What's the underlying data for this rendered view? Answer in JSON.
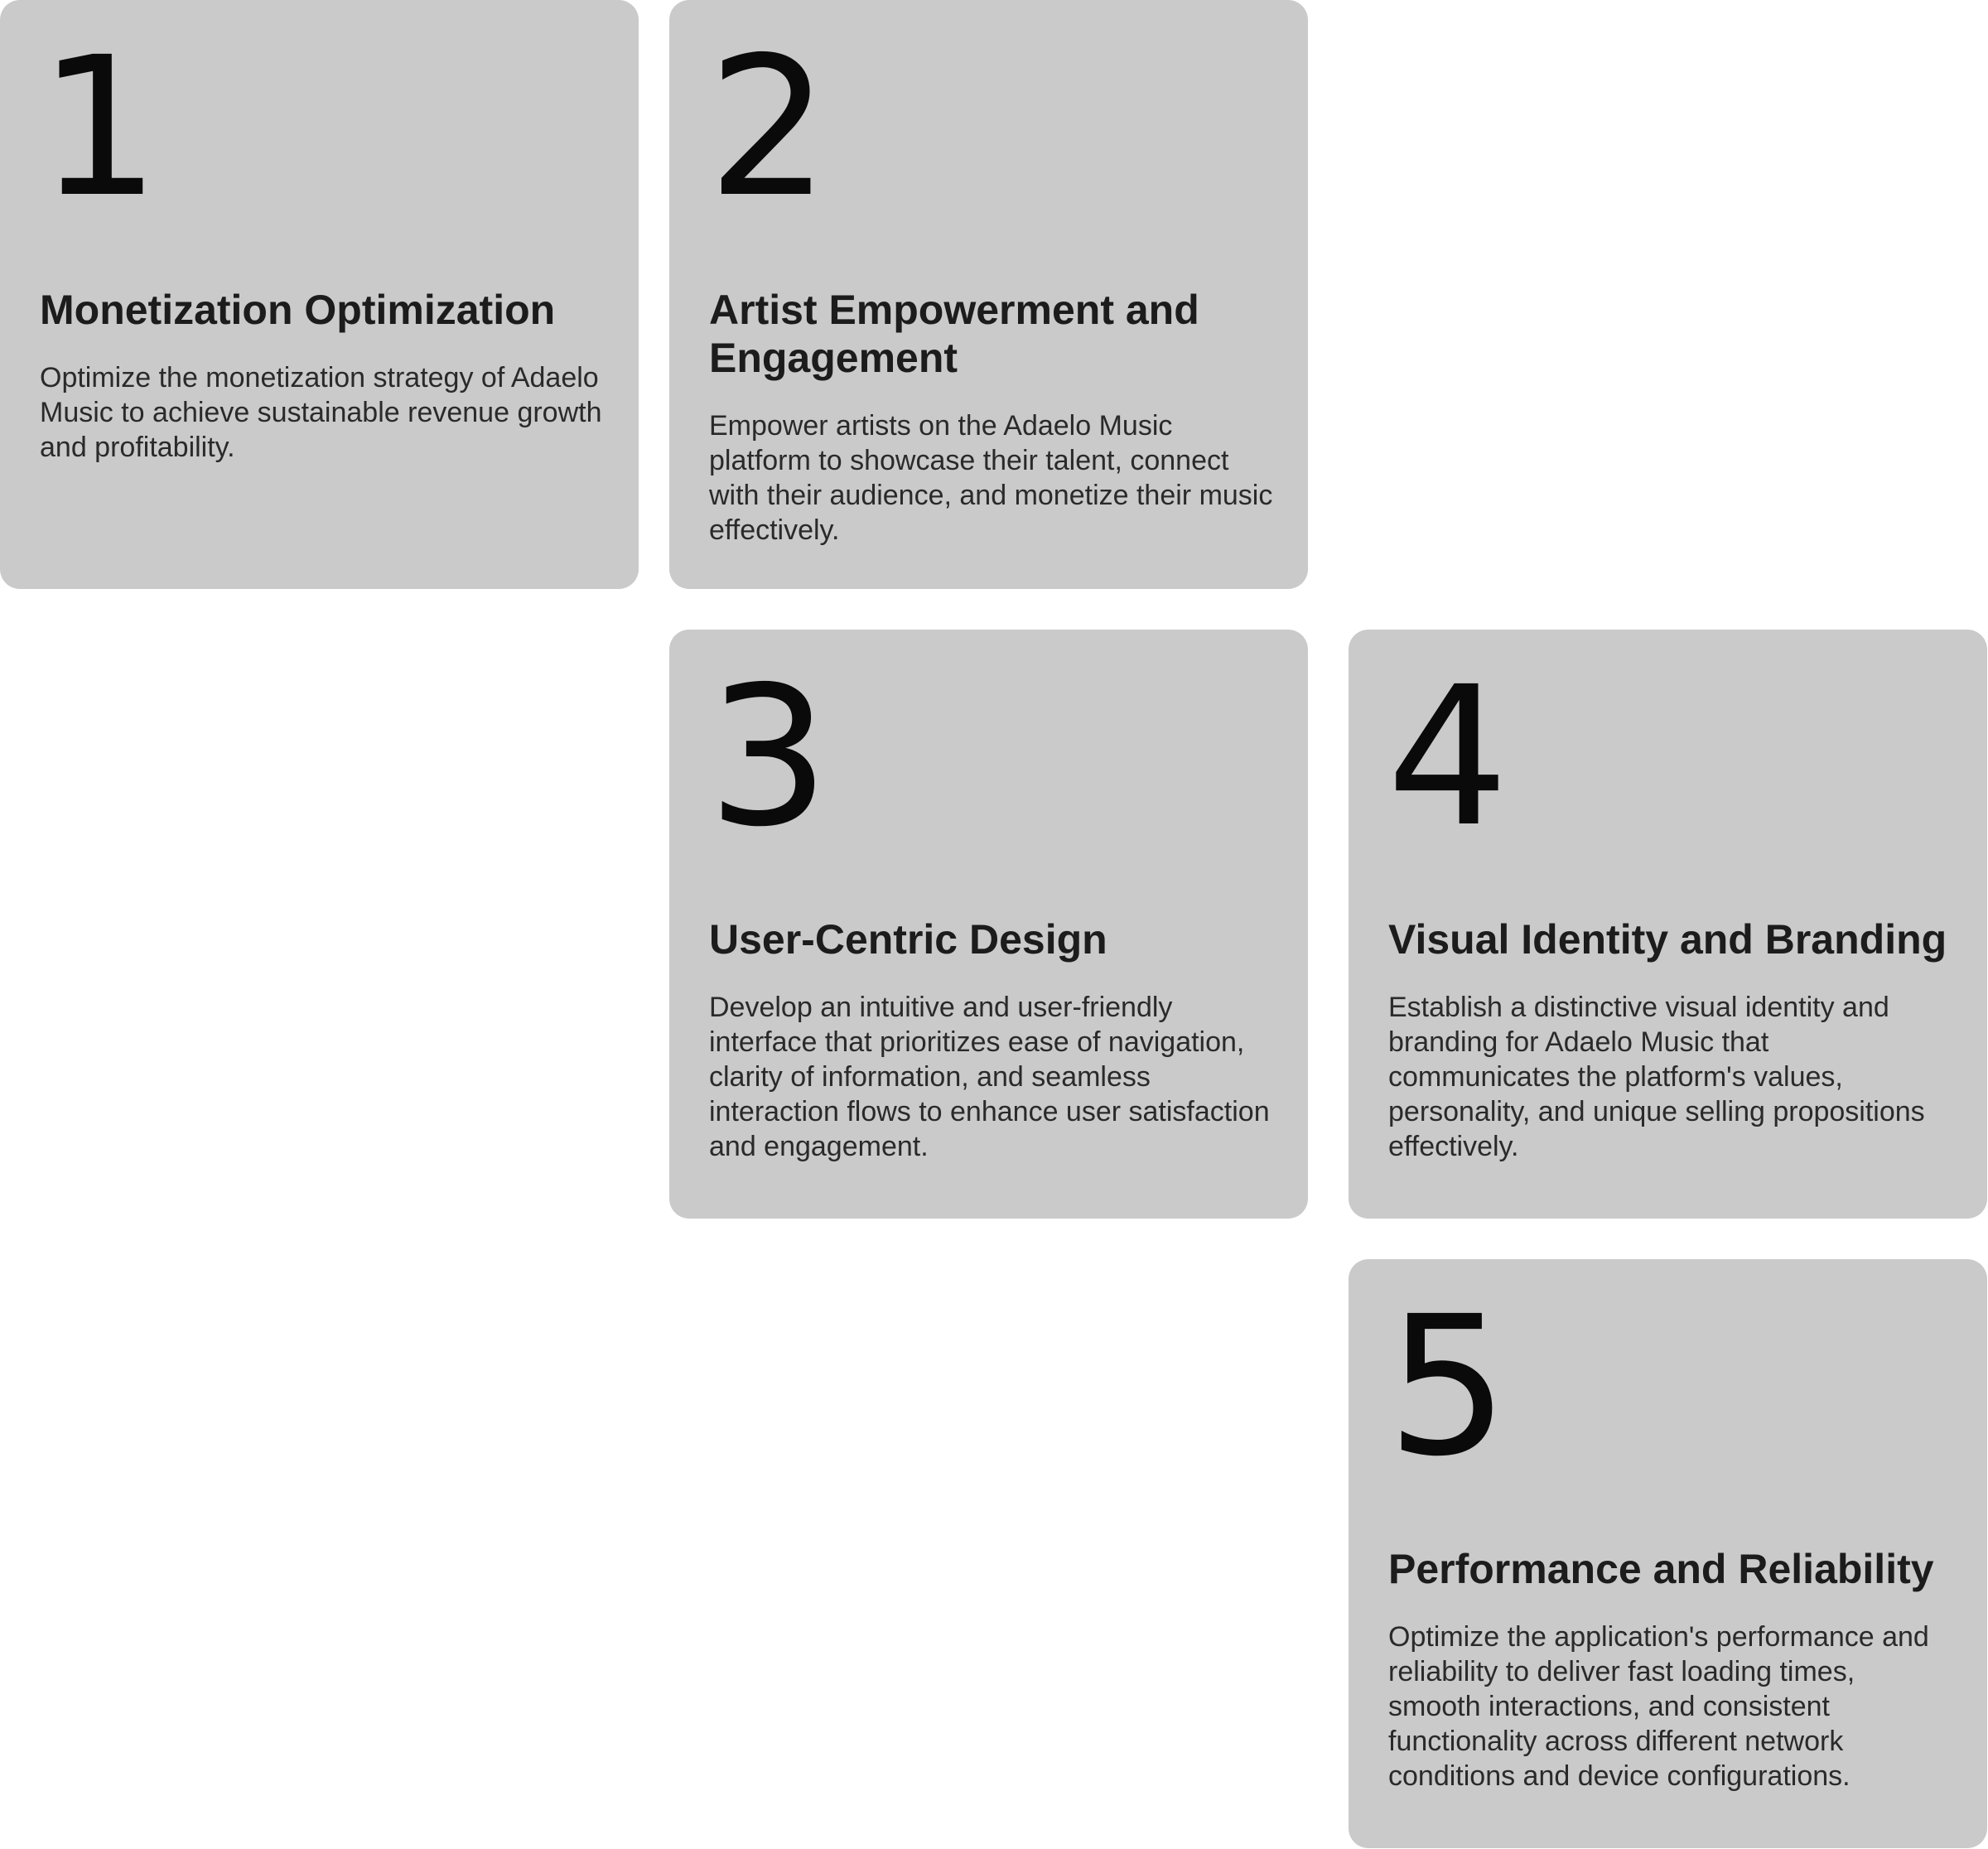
{
  "cards": [
    {
      "number": "1",
      "title": "Monetization Optimization",
      "description": "Optimize the monetization strategy of Adaelo Music to achieve sustainable revenue growth and profitability."
    },
    {
      "number": "2",
      "title": "Artist Empowerment and Engagement",
      "description": "Empower artists on the Adaelo Music platform to showcase their talent, connect with their audience, and monetize their music effectively."
    },
    {
      "number": "3",
      "title": "User-Centric Design",
      "description": "Develop an intuitive and user-friendly interface that prioritizes ease of navigation, clarity of information, and seamless interaction flows to enhance user satisfaction and engagement."
    },
    {
      "number": "4",
      "title": "Visual Identity and Branding",
      "description": "Establish a distinctive visual identity and branding for Adaelo Music that communicates the platform's values, personality, and unique selling propositions effectively."
    },
    {
      "number": "5",
      "title": "Performance and Reliability",
      "description": "Optimize the application's performance and reliability to deliver fast loading times, smooth interactions, and consistent functionality across different network conditions and device configurations."
    }
  ],
  "colors": {
    "card_background": "#cacaca",
    "page_background": "#ffffff",
    "text": "#1c1c1c"
  }
}
